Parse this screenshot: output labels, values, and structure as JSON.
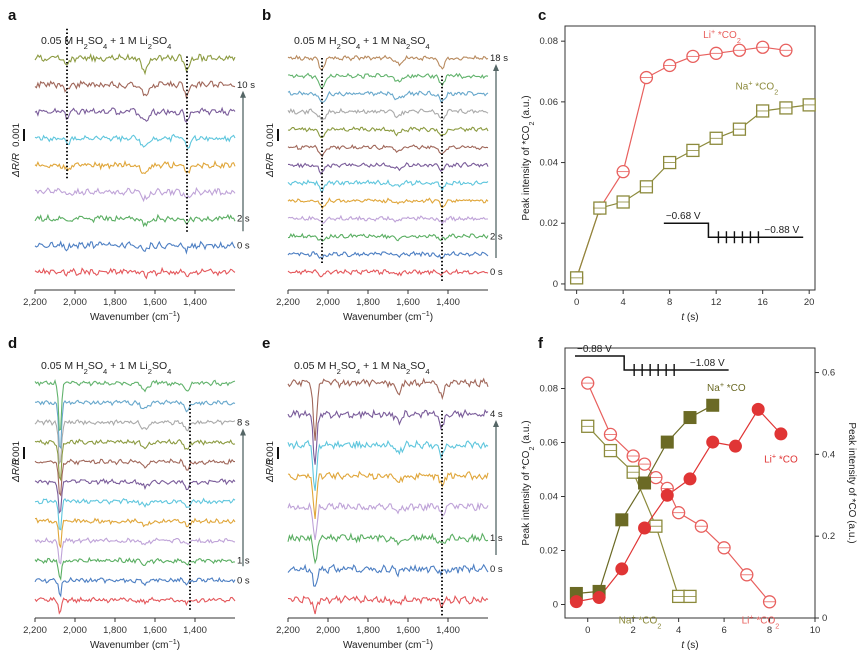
{
  "figure": {
    "palette": [
      "#e4575b",
      "#4d7fc3",
      "#5aae62",
      "#bfa3d8",
      "#e0a63a",
      "#5fc6dd",
      "#7a5c9a",
      "#a0675a",
      "#8c9b41",
      "#aaaaaa",
      "#68a8cc",
      "#62b36d",
      "#b88a5e"
    ]
  },
  "chart_data": [
    {
      "id": "a",
      "type": "line",
      "panel_label": "a",
      "title": "0.05 M H2SO4 + 1 M Li2SO4",
      "title_parts": {
        "t1": "0.05 M H",
        "s1": "2",
        "t2": "SO",
        "s2": "4",
        "t3": " + 1 M Li",
        "s3": "2",
        "t4": "SO",
        "s4": "4"
      },
      "xlabel_main": "Wavenumber (cm",
      "xlabel_sup": "−1",
      "xlabel_end": ")",
      "ylabel_main": "ΔR/R",
      "scale_label": "0.001",
      "xlim": [
        2200,
        1200
      ],
      "xticks": [
        2200,
        2000,
        1800,
        1600,
        1400
      ],
      "xtick_labels": [
        "2,200",
        "2,000",
        "1,800",
        "1,600",
        "1,400"
      ],
      "time_labels": [
        {
          "text": "0 s",
          "trace": 1
        },
        {
          "text": "2 s",
          "trace": 2
        },
        {
          "text": "10 s",
          "trace": 7
        }
      ],
      "spectra": {
        "count": 9,
        "features": [
          {
            "center": 1650,
            "width": 25,
            "depth": 0.8
          },
          {
            "center": 1440,
            "width": 18,
            "depth": 0.8
          },
          {
            "center": 2040,
            "width": 20,
            "depth": 0.4
          }
        ]
      },
      "marker_lines": [
        {
          "wavenumber": 2040,
          "from_trace": 4,
          "to_trace": 9
        },
        {
          "wavenumber": 1440,
          "from_trace": 2,
          "to_trace": 8
        }
      ]
    },
    {
      "id": "b",
      "type": "line",
      "panel_label": "b",
      "title": "0.05 M H2SO4 + 1 M Na2SO4",
      "title_parts": {
        "t1": "0.05 M H",
        "s1": "2",
        "t2": "SO",
        "s2": "4",
        "t3": " + 1 M Na",
        "s3": "2",
        "t4": "SO",
        "s4": "4"
      },
      "xlabel_main": "Wavenumber (cm",
      "xlabel_sup": "−1",
      "xlabel_end": ")",
      "ylabel_main": "ΔR/R",
      "scale_label": "0.001",
      "xlim": [
        2200,
        1200
      ],
      "xticks": [
        2200,
        2000,
        1800,
        1600,
        1400
      ],
      "xtick_labels": [
        "2,200",
        "2,000",
        "1,800",
        "1,600",
        "1,400"
      ],
      "time_labels": [
        {
          "text": "0 s",
          "trace": 0
        },
        {
          "text": "2 s",
          "trace": 2
        },
        {
          "text": "18 s",
          "trace": 12
        }
      ],
      "spectra": {
        "count": 13,
        "features": [
          {
            "center": 2030,
            "width": 20,
            "depth": 1.2
          },
          {
            "center": 1650,
            "width": 25,
            "depth": 0.6
          },
          {
            "center": 1430,
            "width": 18,
            "depth": 1.0
          }
        ]
      },
      "marker_lines": [
        {
          "wavenumber": 2030,
          "from_trace": 1,
          "to_trace": 12
        },
        {
          "wavenumber": 1430,
          "from_trace": 0,
          "to_trace": 11
        }
      ]
    },
    {
      "id": "c",
      "type": "scatter",
      "panel_label": "c",
      "xlabel": "t",
      "xlabel_unit": " (s)",
      "ylabel_main": "Peak intensity of *CO",
      "ylabel_sub": "2",
      "ylabel_end": " (a.u.)",
      "xlim": [
        -1,
        20.5
      ],
      "ylim": [
        -0.002,
        0.085
      ],
      "xticks": [
        0,
        4,
        8,
        12,
        16,
        20
      ],
      "xtick_labels": [
        "0",
        "4",
        "8",
        "12",
        "16",
        "20"
      ],
      "yticks": [
        0,
        0.02,
        0.04,
        0.06,
        0.08
      ],
      "ytick_labels": [
        "0",
        "0.02",
        "0.04",
        "0.06",
        "0.08"
      ],
      "series": [
        {
          "name": "Li+ *CO2",
          "label_main": "Li",
          "label_sup": "+",
          "label_rest": " *CO",
          "label_sub": "2",
          "color": "#e8605e",
          "marker": "circle",
          "x": [
            0,
            2,
            4,
            6,
            8,
            10,
            12,
            14,
            16,
            18
          ],
          "y": [
            0.002,
            0.025,
            0.037,
            0.068,
            0.072,
            0.075,
            0.076,
            0.077,
            0.078,
            0.077
          ],
          "label_at": [
            12.5,
            0.081
          ]
        },
        {
          "name": "Na+ *CO2",
          "label_main": "Na",
          "label_sup": "+",
          "label_rest": " *CO",
          "label_sub": "2",
          "color": "#8c8a3c",
          "marker": "square",
          "x": [
            0,
            2,
            4,
            6,
            8,
            10,
            12,
            14,
            16,
            18,
            20
          ],
          "y": [
            0.002,
            0.025,
            0.027,
            0.032,
            0.04,
            0.044,
            0.048,
            0.051,
            0.057,
            0.058,
            0.059
          ],
          "label_at": [
            15.5,
            0.064
          ]
        }
      ],
      "potential_inset": {
        "high_label": "−0.68 V",
        "low_label": "−0.88 V"
      }
    },
    {
      "id": "d",
      "type": "line",
      "panel_label": "d",
      "title": "0.05 M H2SO4 + 1 M Li2SO4",
      "title_parts": {
        "t1": "0.05 M H",
        "s1": "2",
        "t2": "SO",
        "s2": "4",
        "t3": " + 1 M Li",
        "s3": "2",
        "t4": "SO",
        "s4": "4"
      },
      "xlabel_main": "Wavenumber (cm",
      "xlabel_sup": "−1",
      "xlabel_end": ")",
      "ylabel_main": "ΔR/R",
      "scale_label": "0.001",
      "xlim": [
        2200,
        1200
      ],
      "xticks": [
        2200,
        2000,
        1800,
        1600,
        1400
      ],
      "xtick_labels": [
        "2,200",
        "2,000",
        "1,800",
        "1,600",
        "1,400"
      ],
      "time_labels": [
        {
          "text": "0 s",
          "trace": 1
        },
        {
          "text": "1 s",
          "trace": 2
        },
        {
          "text": "8 s",
          "trace": 9
        }
      ],
      "spectra": {
        "count": 12,
        "features": [
          {
            "center": 2075,
            "width": 10,
            "depth": 4.8
          },
          {
            "center": 1650,
            "width": 22,
            "depth": 0.7
          },
          {
            "center": 1440,
            "width": 16,
            "depth": 0.9
          }
        ]
      },
      "marker_lines": [
        {
          "wavenumber": 1425,
          "from_trace": 0,
          "to_trace": 10
        }
      ]
    },
    {
      "id": "e",
      "type": "line",
      "panel_label": "e",
      "title": "0.05 M H2SO4 + 1 M Na2SO4",
      "title_parts": {
        "t1": "0.05 M H",
        "s1": "2",
        "t2": "SO",
        "s2": "4",
        "t3": " + 1 M Na",
        "s3": "2",
        "t4": "SO",
        "s4": "4"
      },
      "xlabel_main": "Wavenumber (cm",
      "xlabel_sup": "−1",
      "xlabel_end": ")",
      "ylabel_main": "ΔR/R",
      "scale_label": "0.001",
      "xlim": [
        2200,
        1200
      ],
      "xticks": [
        2200,
        2000,
        1800,
        1600,
        1400
      ],
      "xtick_labels": [
        "2,200",
        "2,000",
        "1,800",
        "1,600",
        "1,400"
      ],
      "time_labels": [
        {
          "text": "0 s",
          "trace": 1
        },
        {
          "text": "1 s",
          "trace": 2
        },
        {
          "text": "4 s",
          "trace": 6
        }
      ],
      "spectra": {
        "count": 8,
        "features": [
          {
            "center": 2065,
            "width": 12,
            "depth": 3.4
          },
          {
            "center": 1650,
            "width": 22,
            "depth": 0.5
          },
          {
            "center": 1430,
            "width": 16,
            "depth": 0.8
          }
        ]
      },
      "marker_lines": [
        {
          "wavenumber": 1430,
          "from_trace": 0,
          "to_trace": 6
        }
      ]
    },
    {
      "id": "f",
      "type": "scatter",
      "panel_label": "f",
      "xlabel": "t",
      "xlabel_unit": " (s)",
      "ylabel_main": "Peak intensity of *CO",
      "ylabel_sub": "2",
      "ylabel_end": " (a.u.)",
      "y2label": "Peak intensity of *CO (a.u.)",
      "xlim": [
        -1,
        10
      ],
      "ylim": [
        -0.005,
        0.095
      ],
      "y2lim": [
        0,
        0.66
      ],
      "xticks": [
        0,
        2,
        4,
        6,
        8,
        10
      ],
      "xtick_labels": [
        "0",
        "2",
        "4",
        "6",
        "8",
        "10"
      ],
      "yticks": [
        0,
        0.02,
        0.04,
        0.06,
        0.08
      ],
      "ytick_labels": [
        "0",
        "0.02",
        "0.04",
        "0.06",
        "0.08"
      ],
      "y2ticks": [
        0,
        0.2,
        0.4,
        0.6
      ],
      "y2tick_labels": [
        "0",
        "0.2",
        "0.4",
        "0.6"
      ],
      "series": [
        {
          "name": "Li+ *CO2",
          "label_main": "Li",
          "label_sup": "+",
          "label_rest": " *CO",
          "label_sub": "2",
          "color": "#e8605e",
          "marker": "open-circle",
          "axis": "left",
          "x": [
            0,
            1,
            2,
            2.5,
            3,
            3.5,
            4,
            5,
            6,
            7,
            8
          ],
          "y": [
            0.082,
            0.063,
            0.055,
            0.052,
            0.047,
            0.043,
            0.034,
            0.029,
            0.021,
            0.011,
            0.001
          ],
          "label_at": [
            7.6,
            -0.007
          ]
        },
        {
          "name": "Na+ *CO2",
          "label_main": "Na",
          "label_sup": "+",
          "label_rest": " *CO",
          "label_sub": "2",
          "color": "#8c8a3c",
          "marker": "open-square",
          "axis": "left",
          "x": [
            0,
            1,
            2,
            3,
            4,
            4.5
          ],
          "y": [
            0.066,
            0.057,
            0.049,
            0.029,
            0.003,
            0.003
          ],
          "label_at": [
            2.3,
            -0.007
          ]
        },
        {
          "name": "Na+ *CO",
          "label_main": "Na",
          "label_sup": "+",
          "label_rest": " *CO",
          "label_sub": "",
          "color": "#6b6a25",
          "marker": "filled-square",
          "axis": "right",
          "x": [
            -0.5,
            0.5,
            1.5,
            2.5,
            3.5,
            4.5,
            5.5
          ],
          "y": [
            0.06,
            0.065,
            0.24,
            0.33,
            0.43,
            0.49,
            0.52
          ],
          "label_at": [
            6.1,
            0.555
          ]
        },
        {
          "name": "Li+ *CO",
          "label_main": "Li",
          "label_sup": "+",
          "label_rest": " *CO",
          "label_sub": "",
          "color": "#e03535",
          "marker": "filled-circle",
          "axis": "right",
          "x": [
            -0.5,
            0.5,
            1.5,
            2.5,
            3.5,
            4.5,
            5.5,
            6.5,
            7.5,
            8.5
          ],
          "y": [
            0.04,
            0.05,
            0.12,
            0.22,
            0.3,
            0.34,
            0.43,
            0.42,
            0.51,
            0.45
          ],
          "label_at": [
            8.5,
            0.38
          ]
        }
      ],
      "potential_inset": {
        "high_label": "−0.88 V",
        "low_label": "−1.08 V"
      }
    }
  ]
}
